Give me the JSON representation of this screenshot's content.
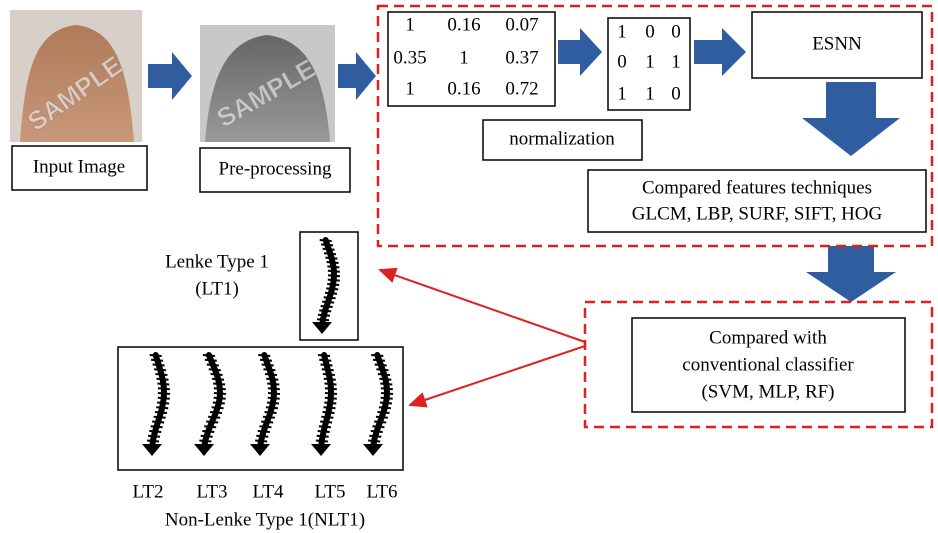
{
  "images": [
    {
      "caption": "Input Image",
      "watermark": "SAMPLE"
    },
    {
      "caption": "Pre-processing",
      "watermark": "SAMPLE"
    }
  ],
  "matrices": [
    {
      "rows": [
        [
          "1",
          "0.16",
          "0.07"
        ],
        [
          "0.35",
          "1",
          "0.37"
        ],
        [
          "1",
          "0.16",
          "0.72"
        ]
      ]
    },
    {
      "rows": [
        [
          "1",
          "0",
          "0"
        ],
        [
          "0",
          "1",
          "1"
        ],
        [
          "1",
          "1",
          "0"
        ]
      ]
    }
  ],
  "normalization": "normalization",
  "esnn": "ESNN",
  "features": {
    "lines": [
      "Compared features techniques",
      "GLCM, LBP, SURF, SIFT, HOG"
    ]
  },
  "classifier": {
    "lines": [
      "Compared with",
      "conventional classifier",
      "(SVM, MLP, RF)"
    ]
  },
  "lt1": {
    "lines": [
      "Lenke Type 1",
      "(LT1)"
    ]
  },
  "nlt1": {
    "labels": [
      "LT2",
      "LT3",
      "LT4",
      "LT5",
      "LT6"
    ],
    "title": "Non-Lenke Type 1(NLT1)"
  }
}
